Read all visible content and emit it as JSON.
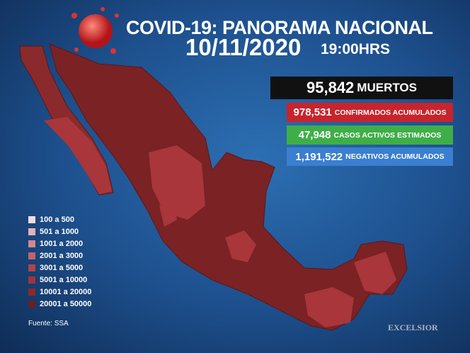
{
  "header": {
    "title": "COVID-19: PANORAMA NACIONAL",
    "date": "10/11/2020",
    "time": "19:00HRS"
  },
  "stats": [
    {
      "number": "95,842",
      "label": "MUERTOS",
      "color": "#111111"
    },
    {
      "number": "978,531",
      "label": "CONFIRMADOS ACUMULADOS",
      "color": "#c8242c"
    },
    {
      "number": "47,948",
      "label": "CASOS ACTIVOS ESTIMADOS",
      "color": "#3fae49"
    },
    {
      "number": "1,191,522",
      "label": "NEGATIVOS ACUMULADOS",
      "color": "#3a7fd0"
    }
  ],
  "legend": [
    {
      "label": "100 a 500",
      "color": "#f2dcdf"
    },
    {
      "label": "501 a 1000",
      "color": "#e3b3b8"
    },
    {
      "label": "1001 a 2000",
      "color": "#d3878f"
    },
    {
      "label": "2001 a 3000",
      "color": "#c2636b"
    },
    {
      "label": "3001 a 5000",
      "color": "#b34348"
    },
    {
      "label": "5001 a 10000",
      "color": "#a3333a"
    },
    {
      "label": "10001 a 20000",
      "color": "#8a2a2c"
    },
    {
      "label": "20001 a 50000",
      "color": "#6e1e20"
    }
  ],
  "source": "Fuente: SSA",
  "logo": "EXCELSIOR"
}
